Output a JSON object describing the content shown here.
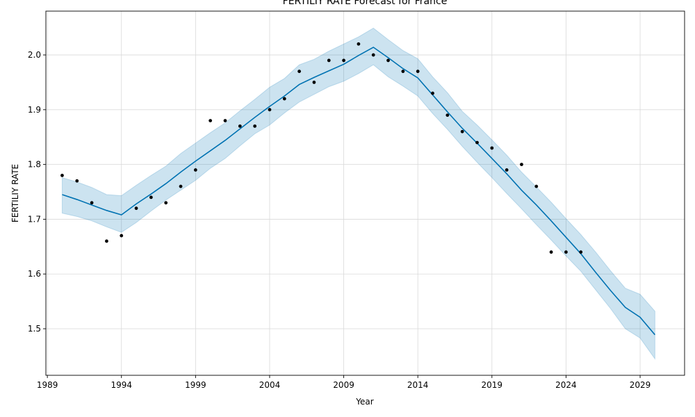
{
  "chart_data": {
    "type": "line",
    "title": "FERTILIY RATE Forecast for France",
    "xlabel": "Year",
    "ylabel": "FERTILIY RATE",
    "xlim": [
      1988.9,
      2032.0
    ],
    "ylim": [
      1.415,
      2.08
    ],
    "grid": true,
    "x_ticks": [
      1989,
      1994,
      1999,
      2004,
      2009,
      2014,
      2019,
      2024,
      2029
    ],
    "x_tick_labels": [
      "1989",
      "1994",
      "1999",
      "2004",
      "2009",
      "2014",
      "2019",
      "2024",
      "2029"
    ],
    "y_ticks": [
      1.5,
      1.6,
      1.7,
      1.8,
      1.9,
      2.0
    ],
    "y_tick_labels": [
      "1.5",
      "1.6",
      "1.7",
      "1.8",
      "1.9",
      "2.0"
    ],
    "colors": {
      "forecast_line": "#0072B2",
      "interval_fill": "#0072B2",
      "observed_points": "#000000",
      "grid": "#d9d9d9"
    },
    "observed": {
      "x": [
        1990,
        1991,
        1992,
        1993,
        1994,
        1995,
        1996,
        1997,
        1998,
        1999,
        2000,
        2001,
        2002,
        2003,
        2004,
        2005,
        2006,
        2007,
        2008,
        2009,
        2010,
        2011,
        2012,
        2013,
        2014,
        2015,
        2016,
        2017,
        2018,
        2019,
        2020,
        2021,
        2022,
        2023,
        2024,
        2025
      ],
      "y": [
        1.78,
        1.77,
        1.73,
        1.66,
        1.67,
        1.72,
        1.74,
        1.73,
        1.76,
        1.79,
        1.88,
        1.88,
        1.87,
        1.87,
        1.9,
        1.92,
        1.97,
        1.95,
        1.99,
        1.99,
        2.02,
        2.0,
        1.99,
        1.97,
        1.97,
        1.93,
        1.89,
        1.86,
        1.84,
        1.83,
        1.79,
        1.8,
        1.76,
        1.64,
        1.64,
        1.64
      ]
    },
    "forecast": {
      "x": [
        1990,
        1991,
        1992,
        1993,
        1994,
        1995,
        1996,
        1997,
        1998,
        1999,
        2000,
        2001,
        2002,
        2003,
        2004,
        2005,
        2006,
        2007,
        2008,
        2009,
        2010,
        2011,
        2012,
        2013,
        2014,
        2015,
        2016,
        2017,
        2018,
        2019,
        2020,
        2021,
        2022,
        2023,
        2024,
        2025,
        2026,
        2027,
        2028,
        2029,
        2030
      ],
      "yhat": [
        1.745,
        1.736,
        1.726,
        1.716,
        1.708,
        1.728,
        1.746,
        1.765,
        1.786,
        1.806,
        1.825,
        1.844,
        1.865,
        1.886,
        1.906,
        1.925,
        1.946,
        1.959,
        1.971,
        1.983,
        1.999,
        2.014,
        1.995,
        1.975,
        1.958,
        1.927,
        1.896,
        1.866,
        1.839,
        1.811,
        1.783,
        1.753,
        1.726,
        1.697,
        1.667,
        1.637,
        1.603,
        1.57,
        1.539,
        1.521,
        1.489
      ],
      "yhat_lower": [
        1.711,
        1.705,
        1.697,
        1.686,
        1.676,
        1.694,
        1.715,
        1.735,
        1.753,
        1.771,
        1.793,
        1.811,
        1.834,
        1.856,
        1.872,
        1.894,
        1.914,
        1.928,
        1.942,
        1.952,
        1.966,
        1.982,
        1.96,
        1.943,
        1.925,
        1.893,
        1.864,
        1.833,
        1.804,
        1.776,
        1.747,
        1.719,
        1.69,
        1.662,
        1.633,
        1.605,
        1.571,
        1.537,
        1.5,
        1.483,
        1.445
      ],
      "yhat_upper": [
        1.776,
        1.768,
        1.758,
        1.745,
        1.743,
        1.762,
        1.78,
        1.797,
        1.82,
        1.839,
        1.858,
        1.876,
        1.898,
        1.919,
        1.941,
        1.957,
        1.982,
        1.992,
        2.007,
        2.02,
        2.033,
        2.049,
        2.028,
        2.008,
        1.993,
        1.96,
        1.931,
        1.897,
        1.872,
        1.845,
        1.817,
        1.786,
        1.759,
        1.731,
        1.701,
        1.672,
        1.64,
        1.606,
        1.574,
        1.563,
        1.532
      ]
    }
  }
}
